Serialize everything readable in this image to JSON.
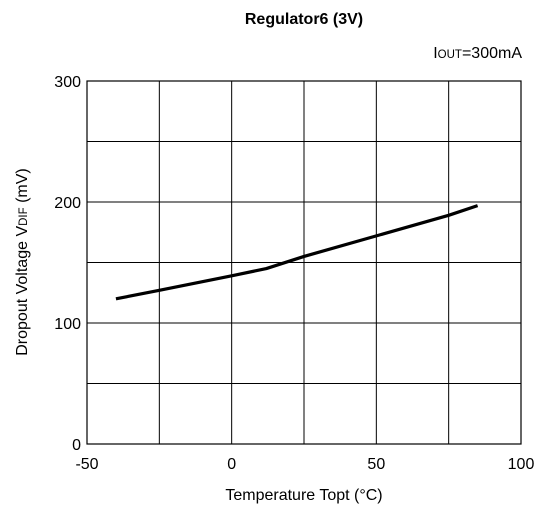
{
  "chart_data": {
    "type": "line",
    "title": "Regulator6 (3V)",
    "annotation": {
      "prefix": "I",
      "sub": "OUT",
      "suffix": "=300mA"
    },
    "xlabel": "Temperature Topt (°C)",
    "ylabel": {
      "prefix": "Dropout Voltage V",
      "sub": "DIF",
      "suffix": " (mV)"
    },
    "xlim": [
      -50,
      100
    ],
    "ylim": [
      0,
      300
    ],
    "x_ticks": [
      -50,
      0,
      50,
      100
    ],
    "x_tick_labels": [
      "-50",
      "0",
      "50",
      "100"
    ],
    "y_ticks": [
      0,
      100,
      200,
      300
    ],
    "y_tick_labels": [
      "0",
      "100",
      "200",
      "300"
    ],
    "x_grid": [
      -50,
      -25,
      0,
      25,
      50,
      75,
      100
    ],
    "y_grid": [
      0,
      50,
      100,
      150,
      200,
      250,
      300
    ],
    "grid": true,
    "series": [
      {
        "x": [
          -40,
          -25,
          0,
          12,
          25,
          50,
          75,
          85
        ],
        "y": [
          120,
          127,
          139,
          145,
          155,
          172,
          189,
          197
        ],
        "color": "#000000"
      }
    ]
  }
}
